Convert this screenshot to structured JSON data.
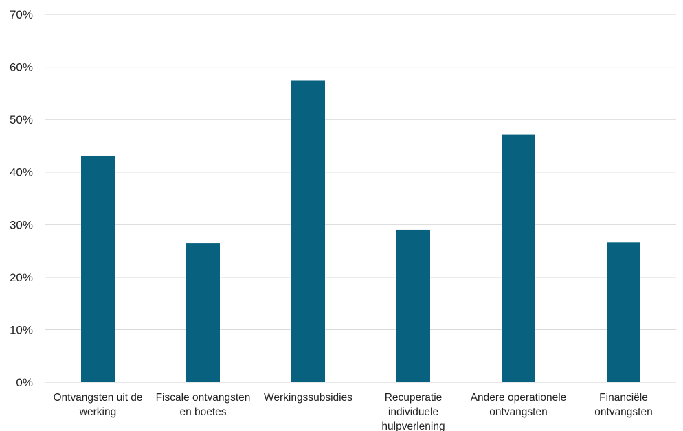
{
  "chart_data": {
    "type": "bar",
    "categories": [
      [
        "Ontvangsten uit de",
        "werking"
      ],
      [
        "Fiscale ontvangsten",
        "en boetes"
      ],
      [
        "Werkingssubsidies"
      ],
      [
        "Recuperatie",
        "individuele",
        "hulpverlening"
      ],
      [
        "Andere operationele",
        "ontvangsten"
      ],
      [
        "Financiële",
        "ontvangsten"
      ]
    ],
    "values": [
      43.1,
      26.5,
      57.4,
      29.0,
      47.2,
      26.6
    ],
    "ylim": [
      0,
      70
    ],
    "yticks": [
      0,
      10,
      20,
      30,
      40,
      50,
      60,
      70
    ],
    "ytick_labels": [
      "0%",
      "10%",
      "20%",
      "30%",
      "40%",
      "50%",
      "60%",
      "70%"
    ],
    "grid": true,
    "legend": "none",
    "colors": {
      "bar": "#08627f",
      "grid": "#d9d9d9",
      "text": "#222222"
    }
  }
}
